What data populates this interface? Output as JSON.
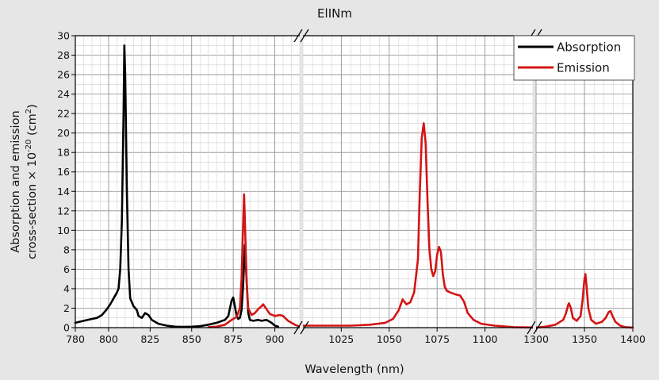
{
  "chart_data": {
    "type": "line",
    "title": "ElINm",
    "xlabel": "Wavelength (nm)",
    "ylabel_line1": "Absorption and emission",
    "ylabel_line2_prefix": "cross-section × 10",
    "ylabel_line2_exp": "-20",
    "ylabel_line2_suffix_a": " (cm",
    "ylabel_line2_sup2": "2",
    "ylabel_line2_suffix_b": ")",
    "ylim": [
      0,
      30
    ],
    "yticks": [
      0,
      2,
      4,
      6,
      8,
      10,
      12,
      14,
      16,
      18,
      20,
      22,
      24,
      26,
      28,
      30
    ],
    "grid": true,
    "legend_position": "top-right",
    "broken_x_axis": true,
    "x_segments": [
      {
        "range": [
          780,
          915
        ],
        "ticks": [
          780,
          800,
          825,
          850,
          875,
          900
        ]
      },
      {
        "range": [
          1005,
          1125
        ],
        "ticks": [
          1025,
          1050,
          1075,
          1100
        ]
      },
      {
        "range": [
          1300,
          1400
        ],
        "ticks": [
          1300,
          1350,
          1400
        ]
      }
    ],
    "series": [
      {
        "name": "Absorption",
        "color": "#000000",
        "segment": 0,
        "points": [
          [
            780,
            0.5
          ],
          [
            785,
            0.7
          ],
          [
            790,
            0.9
          ],
          [
            793,
            1.0
          ],
          [
            796,
            1.3
          ],
          [
            799,
            1.9
          ],
          [
            801,
            2.4
          ],
          [
            803,
            3.0
          ],
          [
            805,
            3.6
          ],
          [
            806,
            4.0
          ],
          [
            807,
            6.0
          ],
          [
            808,
            11.0
          ],
          [
            809,
            22.0
          ],
          [
            809.5,
            29.0
          ],
          [
            810,
            26.0
          ],
          [
            811,
            14.0
          ],
          [
            812,
            6.0
          ],
          [
            813,
            3.0
          ],
          [
            815,
            2.2
          ],
          [
            817,
            1.8
          ],
          [
            818,
            1.2
          ],
          [
            820,
            1.0
          ],
          [
            822,
            1.5
          ],
          [
            824,
            1.3
          ],
          [
            826,
            0.8
          ],
          [
            830,
            0.4
          ],
          [
            835,
            0.2
          ],
          [
            840,
            0.1
          ],
          [
            845,
            0.08
          ],
          [
            850,
            0.1
          ],
          [
            855,
            0.15
          ],
          [
            860,
            0.3
          ],
          [
            865,
            0.5
          ],
          [
            870,
            0.8
          ],
          [
            872,
            1.2
          ],
          [
            873,
            2.0
          ],
          [
            874,
            2.8
          ],
          [
            875,
            3.1
          ],
          [
            876,
            2.2
          ],
          [
            877,
            1.2
          ],
          [
            878,
            0.9
          ],
          [
            879,
            1.0
          ],
          [
            880,
            1.8
          ],
          [
            881,
            4.5
          ],
          [
            882,
            8.5
          ],
          [
            883,
            5.0
          ],
          [
            884,
            1.5
          ],
          [
            885,
            0.8
          ],
          [
            887,
            0.7
          ],
          [
            890,
            0.8
          ],
          [
            892,
            0.7
          ],
          [
            895,
            0.8
          ],
          [
            898,
            0.5
          ],
          [
            900,
            0.2
          ],
          [
            902,
            0.1
          ]
        ]
      },
      {
        "name": "Emission",
        "color": "#d41414",
        "segment": "all",
        "points_by_segment": [
          [
            [
              860,
              0.05
            ],
            [
              865,
              0.1
            ],
            [
              870,
              0.3
            ],
            [
              874,
              0.8
            ],
            [
              877,
              1.1
            ],
            [
              879,
              2.0
            ],
            [
              880,
              5.0
            ],
            [
              881,
              11.0
            ],
            [
              881.5,
              13.7
            ],
            [
              882,
              11.0
            ],
            [
              883,
              5.0
            ],
            [
              884,
              2.0
            ],
            [
              886,
              1.3
            ],
            [
              888,
              1.5
            ],
            [
              890,
              1.9
            ],
            [
              892,
              2.2
            ],
            [
              893,
              2.4
            ],
            [
              895,
              1.9
            ],
            [
              897,
              1.4
            ],
            [
              900,
              1.2
            ],
            [
              903,
              1.3
            ],
            [
              905,
              1.2
            ],
            [
              908,
              0.7
            ],
            [
              912,
              0.3
            ],
            [
              915,
              0.1
            ]
          ],
          [
            [
              1005,
              0.2
            ],
            [
              1010,
              0.2
            ],
            [
              1020,
              0.2
            ],
            [
              1030,
              0.2
            ],
            [
              1040,
              0.3
            ],
            [
              1048,
              0.5
            ],
            [
              1052,
              0.9
            ],
            [
              1055,
              1.8
            ],
            [
              1057,
              2.9
            ],
            [
              1059,
              2.4
            ],
            [
              1061,
              2.6
            ],
            [
              1063,
              3.6
            ],
            [
              1065,
              7.0
            ],
            [
              1066,
              14.0
            ],
            [
              1067,
              19.5
            ],
            [
              1068,
              21.0
            ],
            [
              1069,
              19.0
            ],
            [
              1070,
              13.0
            ],
            [
              1071,
              8.0
            ],
            [
              1072,
              6.0
            ],
            [
              1073,
              5.3
            ],
            [
              1074,
              5.8
            ],
            [
              1075,
              7.5
            ],
            [
              1076,
              8.3
            ],
            [
              1077,
              7.8
            ],
            [
              1078,
              5.5
            ],
            [
              1079,
              4.2
            ],
            [
              1080,
              3.8
            ],
            [
              1082,
              3.6
            ],
            [
              1085,
              3.4
            ],
            [
              1087,
              3.3
            ],
            [
              1089,
              2.7
            ],
            [
              1091,
              1.5
            ],
            [
              1094,
              0.8
            ],
            [
              1098,
              0.4
            ],
            [
              1105,
              0.2
            ],
            [
              1115,
              0.05
            ],
            [
              1125,
              0.02
            ]
          ],
          [
            [
              1300,
              0.02
            ],
            [
              1310,
              0.1
            ],
            [
              1320,
              0.3
            ],
            [
              1328,
              0.8
            ],
            [
              1331,
              1.5
            ],
            [
              1333,
              2.3
            ],
            [
              1334,
              2.5
            ],
            [
              1336,
              2.0
            ],
            [
              1338,
              1.0
            ],
            [
              1342,
              0.7
            ],
            [
              1346,
              1.2
            ],
            [
              1348,
              2.8
            ],
            [
              1350,
              5.0
            ],
            [
              1351,
              5.5
            ],
            [
              1352,
              4.5
            ],
            [
              1354,
              2.0
            ],
            [
              1357,
              0.8
            ],
            [
              1362,
              0.4
            ],
            [
              1368,
              0.6
            ],
            [
              1372,
              1.0
            ],
            [
              1375,
              1.6
            ],
            [
              1377,
              1.7
            ],
            [
              1379,
              1.2
            ],
            [
              1382,
              0.6
            ],
            [
              1387,
              0.2
            ],
            [
              1392,
              0.05
            ],
            [
              1400,
              0.01
            ]
          ]
        ]
      }
    ],
    "legend": [
      {
        "label": "Absorption",
        "color": "#000000"
      },
      {
        "label": "Emission",
        "color": "#d41414"
      }
    ]
  }
}
